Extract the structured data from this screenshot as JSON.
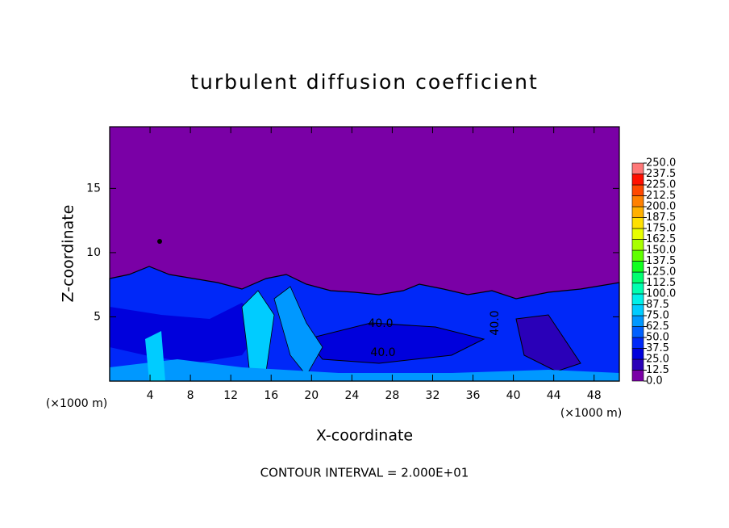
{
  "chart_data": {
    "type": "contour",
    "title": "turbulent diffusion coefficient",
    "xlabel": "X-coordinate",
    "ylabel": "Z-coordinate",
    "x_unit": "(×1000 m)",
    "footer": "CONTOUR INTERVAL = 2.000E+01",
    "xlim": [
      0,
      50.5
    ],
    "xticks": [
      4,
      8,
      12,
      16,
      20,
      24,
      28,
      32,
      36,
      40,
      44,
      48
    ],
    "ylim": [
      0,
      19.8
    ],
    "yticks": [
      5,
      10,
      15
    ],
    "contour_labels": [
      {
        "value": 40,
        "label": "40.0"
      },
      {
        "value": 40,
        "label": "40.0"
      },
      {
        "value": 40,
        "label": "40.0"
      }
    ],
    "levels": [
      {
        "value": 0,
        "label": "0.0"
      },
      {
        "value": 12.5,
        "label": "12.5"
      },
      {
        "value": 25,
        "label": "25.0"
      },
      {
        "value": 37.5,
        "label": "37.5"
      },
      {
        "value": 50,
        "label": "50.0"
      },
      {
        "value": 62.5,
        "label": "62.5"
      },
      {
        "value": 75,
        "label": "75.0"
      },
      {
        "value": 87.5,
        "label": "87.5"
      },
      {
        "value": 100,
        "label": "100.0"
      },
      {
        "value": 112.5,
        "label": "112.5"
      },
      {
        "value": 125,
        "label": "125.0"
      },
      {
        "value": 137.5,
        "label": "137.5"
      },
      {
        "value": 150,
        "label": "150.0"
      },
      {
        "value": 162.5,
        "label": "162.5"
      },
      {
        "value": 175,
        "label": "175.0"
      },
      {
        "value": 187.5,
        "label": "187.5"
      },
      {
        "value": 200,
        "label": "200.0"
      },
      {
        "value": 212.5,
        "label": "212.5"
      },
      {
        "value": 225,
        "label": "225.0"
      },
      {
        "value": 237.5,
        "label": "237.5"
      },
      {
        "value": 250,
        "label": "250.0"
      }
    ],
    "colors": [
      "#7a00a6",
      "#2a00b8",
      "#0000dc",
      "#0028f8",
      "#0060ff",
      "#0098ff",
      "#00ccff",
      "#00f0e8",
      "#00ffb0",
      "#00ff70",
      "#10ff20",
      "#60ff00",
      "#a8ff00",
      "#e8ff00",
      "#ffe000",
      "#ffb000",
      "#ff8000",
      "#ff4800",
      "#ff1000",
      "#ff7878"
    ]
  }
}
